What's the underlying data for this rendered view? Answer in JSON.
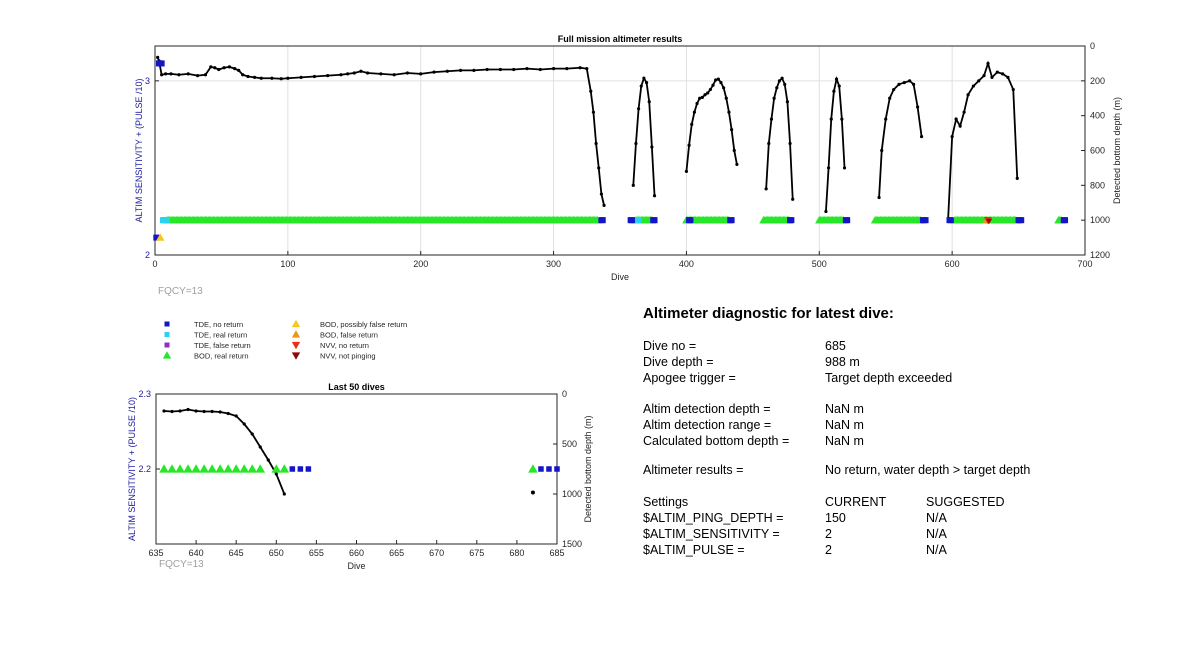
{
  "chart_data": [
    {
      "id": "main",
      "type": "scatter",
      "title": "Full mission altimeter results",
      "xlabel": "Dive",
      "ylabel_left": "ALTIM SENSITIVITY + (PULSE /10)",
      "ylabel_right": "Detected bottom depth (m)",
      "xlim": [
        0,
        700
      ],
      "ylim_left": [
        2,
        3.2
      ],
      "ylim_right": [
        0,
        1200
      ],
      "right_axis_reversed": true,
      "x_ticks": [
        0,
        100,
        200,
        300,
        400,
        500,
        600,
        700
      ],
      "y_ticks_left": [
        2,
        3
      ],
      "y_ticks_right": [
        0,
        200,
        400,
        600,
        800,
        1000,
        1200
      ],
      "grid": true,
      "note": "FQCY=13",
      "bottom_depth_segments": [
        {
          "x": [
            2,
            3,
            5,
            8,
            12,
            18,
            25,
            32,
            38,
            42,
            45,
            48,
            52,
            56,
            60,
            63,
            66,
            70,
            75,
            80,
            88,
            95,
            100,
            110,
            120,
            130,
            140,
            145,
            150,
            155,
            160,
            170,
            180,
            190,
            200,
            210,
            220,
            230,
            240,
            250,
            260,
            270,
            280,
            290,
            300,
            310,
            320,
            325,
            328,
            330,
            332,
            334,
            336,
            338
          ],
          "y": [
            65,
            85,
            165,
            160,
            160,
            165,
            160,
            170,
            165,
            120,
            125,
            135,
            125,
            120,
            130,
            140,
            165,
            175,
            180,
            185,
            185,
            188,
            185,
            180,
            175,
            170,
            165,
            160,
            155,
            145,
            155,
            160,
            165,
            155,
            160,
            150,
            145,
            140,
            140,
            135,
            135,
            135,
            130,
            135,
            130,
            130,
            125,
            130,
            260,
            380,
            560,
            700,
            850,
            915
          ]
        },
        {
          "x": [
            360,
            362,
            364,
            366,
            368,
            370,
            372,
            374,
            376
          ],
          "y": [
            800,
            560,
            360,
            230,
            185,
            210,
            320,
            580,
            860
          ]
        },
        {
          "x": [
            400,
            402,
            404,
            406,
            408,
            410,
            412,
            414,
            416,
            418,
            420,
            422,
            424,
            426,
            428,
            430,
            432,
            434,
            436,
            438
          ],
          "y": [
            720,
            570,
            450,
            380,
            330,
            300,
            295,
            280,
            270,
            250,
            225,
            195,
            190,
            210,
            240,
            300,
            380,
            480,
            600,
            680
          ]
        },
        {
          "x": [
            460,
            462,
            464,
            466,
            468,
            470,
            472,
            474,
            476,
            478,
            480
          ],
          "y": [
            820,
            560,
            420,
            300,
            240,
            200,
            185,
            220,
            320,
            560,
            880
          ]
        },
        {
          "x": [
            505,
            507,
            509,
            511,
            513,
            515,
            517,
            519
          ],
          "y": [
            950,
            700,
            420,
            260,
            190,
            230,
            420,
            700
          ]
        },
        {
          "x": [
            545,
            547,
            550,
            553,
            556,
            560,
            564,
            568,
            571,
            574,
            577
          ],
          "y": [
            870,
            600,
            420,
            300,
            250,
            220,
            210,
            200,
            220,
            350,
            520
          ]
        },
        {
          "x": [
            597,
            600,
            603,
            606,
            609,
            612,
            616,
            620,
            624,
            627,
            630,
            634,
            638,
            642,
            646,
            649
          ],
          "y": [
            990,
            520,
            420,
            460,
            380,
            280,
            230,
            200,
            170,
            100,
            180,
            150,
            160,
            180,
            250,
            760
          ]
        }
      ],
      "tde_no_return_dives": [
        3,
        4,
        5,
        336,
        337,
        358,
        359,
        375,
        376,
        402,
        403,
        433,
        434,
        478,
        479,
        520,
        521,
        578,
        579,
        580,
        598,
        599,
        650,
        651,
        652,
        684,
        685
      ],
      "tde_real_return_dives": [
        6,
        7,
        8,
        9,
        360,
        361,
        362,
        363,
        364
      ],
      "tde_real_return_y": 2.2,
      "bod_real_return_segments": [
        [
          9,
          333
        ],
        [
          362,
          374
        ],
        [
          400,
          432
        ],
        [
          458,
          477
        ],
        [
          500,
          518
        ],
        [
          542,
          576
        ],
        [
          602,
          648
        ],
        [
          680,
          682
        ]
      ],
      "bod_real_return_y": 2.2,
      "bod_possibly_false_dives": [
        4
      ],
      "bod_possibly_false_y": 2.1,
      "tde_false_return_dives": [
        1
      ],
      "tde_false_return_y": 2.1,
      "bod_false_return_dives": [
        626
      ],
      "nvv_no_return_dives": [
        627
      ],
      "nvv_not_pinging_dives": [
        627
      ],
      "nvv_y": 2.2
    },
    {
      "id": "last50",
      "type": "scatter",
      "title": "Last 50 dives",
      "xlabel": "Dive",
      "ylabel_left": "ALTIM SENSITIVITY + (PULSE /10)",
      "ylabel_right": "Detected bottom depth (m)",
      "xlim": [
        635,
        685
      ],
      "ylim_left": [
        2.1,
        2.3
      ],
      "ylim_right": [
        0,
        1500
      ],
      "right_axis_reversed": true,
      "x_ticks": [
        635,
        640,
        645,
        650,
        655,
        660,
        665,
        670,
        675,
        680,
        685
      ],
      "y_ticks_left": [
        2.2,
        2.3
      ],
      "y_ticks_right": [
        0,
        500,
        1000,
        1500
      ],
      "grid": false,
      "note": "FQCY=13",
      "bottom_depth_curve": {
        "x": [
          636,
          637,
          638,
          639,
          640,
          641,
          642,
          643,
          644,
          645,
          646,
          647,
          648,
          649,
          650,
          651
        ],
        "y": [
          170,
          175,
          170,
          155,
          170,
          175,
          175,
          180,
          195,
          220,
          300,
          400,
          530,
          660,
          800,
          1000
        ]
      },
      "isolated_depth": {
        "x": [
          682
        ],
        "y": [
          985
        ]
      },
      "bod_real_return_dives": [
        636,
        637,
        638,
        639,
        640,
        641,
        642,
        643,
        644,
        645,
        646,
        647,
        648,
        650,
        651,
        682
      ],
      "tde_no_return_dives": [
        652,
        653,
        654,
        683,
        684,
        685
      ],
      "symbol_y": 2.2
    }
  ],
  "legend": [
    {
      "key": "tde_no_return",
      "label": "TDE, no return",
      "marker": "square",
      "color": "#1414c8"
    },
    {
      "key": "tde_real_return",
      "label": "TDE, real return",
      "marker": "square",
      "color": "#28d2f0"
    },
    {
      "key": "tde_false_return",
      "label": "TDE, false return",
      "marker": "square",
      "color": "#8c2fc8"
    },
    {
      "key": "bod_real_return",
      "label": "BOD, real return",
      "marker": "triangle-up",
      "color": "#28e628"
    },
    {
      "key": "bod_possibly_false",
      "label": "BOD, possibly false return",
      "marker": "triangle-up",
      "color": "#f5c81e"
    },
    {
      "key": "bod_false_return",
      "label": "BOD, false return",
      "marker": "triangle-up",
      "color": "#f09614"
    },
    {
      "key": "nvv_no_return",
      "label": "NVV, no return",
      "marker": "triangle-down",
      "color": "#e63214"
    },
    {
      "key": "nvv_not_pinging",
      "label": "NVV, not pinging",
      "marker": "triangle-down",
      "color": "#8c0a0a"
    }
  ],
  "colors": {
    "axis_label": "#2020a0",
    "note": "#a0a0a0",
    "grid": "#e0e0e0",
    "depth": "#000000"
  },
  "diagnostic": {
    "title": "Altimeter diagnostic for latest dive:",
    "rows": [
      {
        "label": "Dive no =",
        "value": "685",
        "suggested": ""
      },
      {
        "label": "Dive depth =",
        "value": "988 m",
        "suggested": ""
      },
      {
        "label": "Apogee trigger =",
        "value": "Target depth exceeded",
        "suggested": ""
      },
      {
        "label": "Altim detection depth =",
        "value": "NaN m",
        "suggested": ""
      },
      {
        "label": "Altim detection range =",
        "value": "NaN m",
        "suggested": ""
      },
      {
        "label": "Calculated bottom depth =",
        "value": "NaN m",
        "suggested": ""
      },
      {
        "label": "Altimeter results =",
        "value": "No return, water depth > target depth",
        "suggested": ""
      },
      {
        "label": "Settings",
        "value": "CURRENT",
        "suggested": "SUGGESTED"
      },
      {
        "label": "$ALTIM_PING_DEPTH =",
        "value": "150",
        "suggested": "N/A"
      },
      {
        "label": "$ALTIM_SENSITIVITY =",
        "value": "2",
        "suggested": "N/A"
      },
      {
        "label": "$ALTIM_PULSE =",
        "value": "2",
        "suggested": "N/A"
      }
    ]
  }
}
